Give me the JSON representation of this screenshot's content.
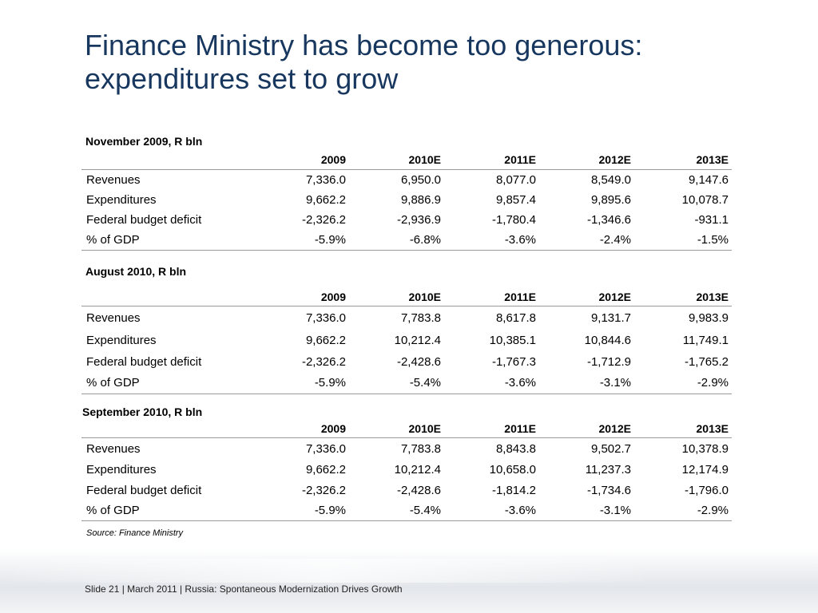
{
  "title": {
    "line1": "Finance Ministry has become too generous:",
    "line2": "expenditures set to grow"
  },
  "tables": [
    {
      "heading": "November 2009, R bln",
      "columns": [
        "2009",
        "2010E",
        "2011E",
        "2012E",
        "2013E"
      ],
      "rows": [
        {
          "label": "Revenues",
          "values": [
            "7,336.0",
            "6,950.0",
            "8,077.0",
            "8,549.0",
            "9,147.6"
          ]
        },
        {
          "label": "Expenditures",
          "values": [
            "9,662.2",
            "9,886.9",
            "9,857.4",
            "9,895.6",
            "10,078.7"
          ]
        },
        {
          "label": "Federal budget deficit",
          "values": [
            "-2,326.2",
            "-2,936.9",
            "-1,780.4",
            "-1,346.6",
            "-931.1"
          ]
        },
        {
          "label": "% of GDP",
          "values": [
            "-5.9%",
            "-6.8%",
            "-3.6%",
            "-2.4%",
            "-1.5%"
          ]
        }
      ]
    },
    {
      "heading": "August 2010, R bln",
      "columns": [
        "2009",
        "2010E",
        "2011E",
        "2012E",
        "2013E"
      ],
      "rows": [
        {
          "label": "Revenues",
          "values": [
            "7,336.0",
            "7,783.8",
            "8,617.8",
            "9,131.7",
            "9,983.9"
          ]
        },
        {
          "label": "Expenditures",
          "values": [
            "9,662.2",
            "10,212.4",
            "10,385.1",
            "10,844.6",
            "11,749.1"
          ]
        },
        {
          "label": "Federal budget deficit",
          "values": [
            "-2,326.2",
            "-2,428.6",
            "-1,767.3",
            "-1,712.9",
            "-1,765.2"
          ]
        },
        {
          "label": "% of GDP",
          "values": [
            "-5.9%",
            "-5.4%",
            "-3.6%",
            "-3.1%",
            "-2.9%"
          ]
        }
      ]
    },
    {
      "heading": "September 2010, R bln",
      "columns": [
        "2009",
        "2010E",
        "2011E",
        "2012E",
        "2013E"
      ],
      "rows": [
        {
          "label": "Revenues",
          "values": [
            "7,336.0",
            "7,783.8",
            "8,843.8",
            "9,502.7",
            "10,378.9"
          ]
        },
        {
          "label": "Expenditures",
          "values": [
            "9,662.2",
            "10,212.4",
            "10,658.0",
            "11,237.3",
            "12,174.9"
          ]
        },
        {
          "label": "Federal budget deficit",
          "values": [
            "-2,326.2",
            "-2,428.6",
            "-1,814.2",
            "-1,734.6",
            "-1,796.0"
          ]
        },
        {
          "label": "% of GDP",
          "values": [
            "-5.9%",
            "-5.4%",
            "-3.6%",
            "-3.1%",
            "-2.9%"
          ]
        }
      ]
    }
  ],
  "source": "Source: Finance Ministry",
  "footer": "Slide 21  | March 2011 | Russia: Spontaneous Modernization Drives Growth",
  "colors": {
    "title": "#17375e",
    "rule": "#9a9a9a"
  }
}
